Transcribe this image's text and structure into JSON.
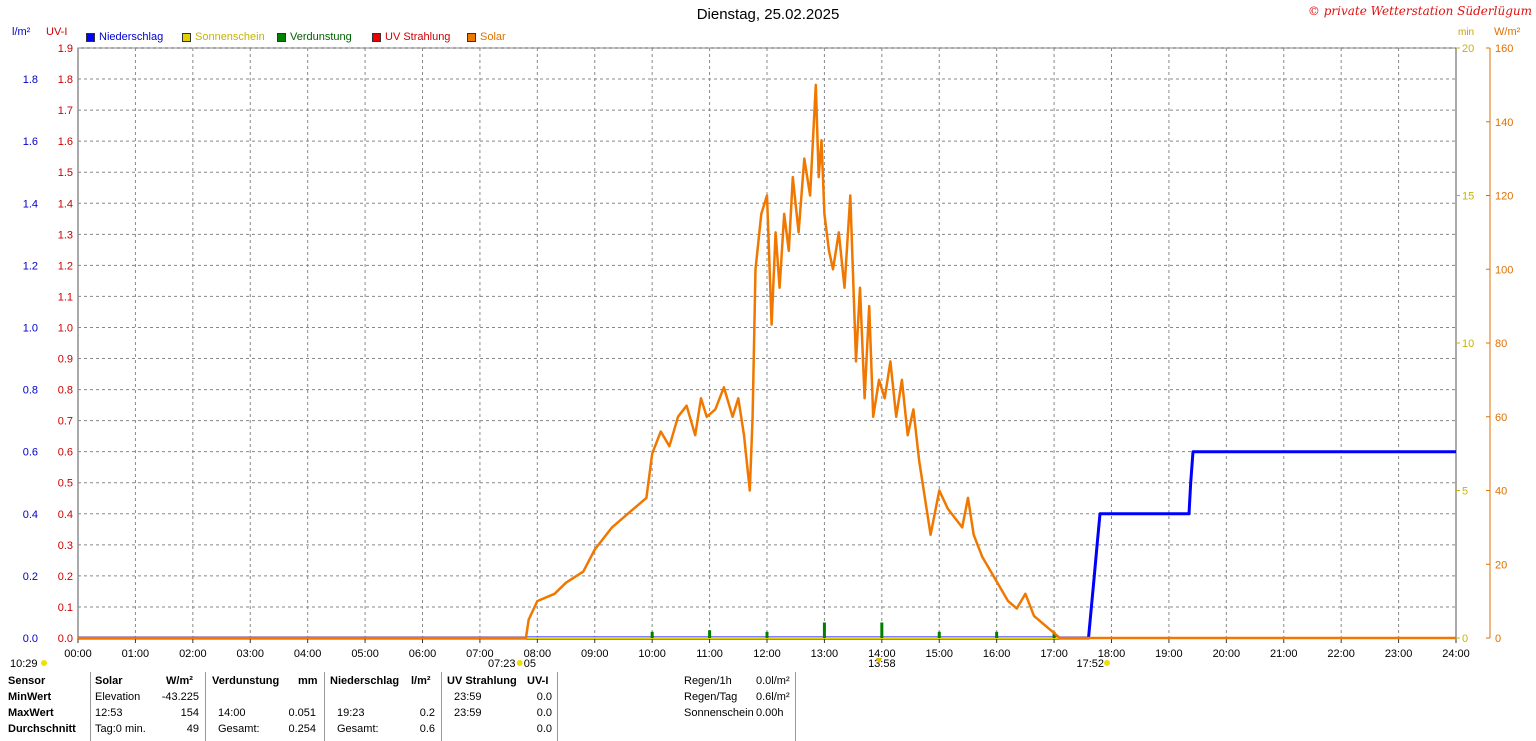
{
  "header": {
    "title": "Dienstag, 25.02.2025",
    "brand": "© private Wetterstation Süderlügum"
  },
  "axes": {
    "left_unit_1": "l/m²",
    "left_unit_2": "UV-I",
    "right_unit_1": "min",
    "right_unit_2": "W/m²"
  },
  "legend": [
    {
      "label": "Niederschlag",
      "color": "#0000ff"
    },
    {
      "label": "Sonnenschein",
      "color": "#e0d000"
    },
    {
      "label": "Verdunstung",
      "color": "#008000"
    },
    {
      "label": "UV Strahlung",
      "color": "#ee0000"
    },
    {
      "label": "Solar",
      "color": "#f07800"
    }
  ],
  "markers": {
    "left": "10:29",
    "sunrise": "07:23",
    "sunrise_tail": "05",
    "noon": "13:58",
    "sunset": "17:52"
  },
  "chart_data": {
    "type": "line",
    "x_unit": "hour",
    "x_ticks": [
      "00:00",
      "01:00",
      "02:00",
      "03:00",
      "04:00",
      "05:00",
      "06:00",
      "07:00",
      "08:00",
      "09:00",
      "10:00",
      "11:00",
      "12:00",
      "13:00",
      "14:00",
      "15:00",
      "16:00",
      "17:00",
      "18:00",
      "19:00",
      "20:00",
      "21:00",
      "22:00",
      "23:00",
      "24:00"
    ],
    "xlim": [
      0,
      24
    ],
    "y_axes": {
      "precip": {
        "ticks": [
          "0.0",
          "0.2",
          "0.4",
          "0.6",
          "0.8",
          "1.0",
          "1.2",
          "1.4",
          "1.6",
          "1.8"
        ],
        "ylim": [
          0,
          1.9
        ],
        "color": "#0000cc"
      },
      "uv": {
        "ticks": [
          "0.0",
          "0.1",
          "0.2",
          "0.3",
          "0.4",
          "0.5",
          "0.6",
          "0.7",
          "0.8",
          "0.9",
          "1.0",
          "1.1",
          "1.2",
          "1.3",
          "1.4",
          "1.5",
          "1.6",
          "1.7",
          "1.8",
          "1.9"
        ],
        "ylim": [
          0,
          1.9
        ],
        "color": "#cc0000"
      },
      "sun_min": {
        "ticks": [
          "0",
          "5",
          "10",
          "15",
          "20"
        ],
        "ylim": [
          0,
          20
        ],
        "color": "#c8b400"
      },
      "solar": {
        "ticks": [
          "0",
          "20",
          "40",
          "60",
          "80",
          "100",
          "120",
          "140",
          "160"
        ],
        "ylim": [
          0,
          160
        ],
        "color": "#e07000"
      }
    },
    "series": [
      {
        "name": "Niederschlag",
        "axis": "precip",
        "color": "#0000ff",
        "x": [
          0,
          17.6,
          17.65,
          17.7,
          17.75,
          17.8,
          19.35,
          19.38,
          19.42,
          24
        ],
        "y": [
          0,
          0,
          0.1,
          0.2,
          0.3,
          0.4,
          0.4,
          0.5,
          0.6,
          0.6
        ]
      },
      {
        "name": "Sonnenschein",
        "axis": "sun_min",
        "color": "#e0d000",
        "x": [
          3.95,
          24
        ],
        "y": [
          0,
          0
        ]
      },
      {
        "name": "Verdunstung",
        "axis": "precip",
        "color": "#008000",
        "x": [
          10,
          11,
          12,
          13,
          14,
          15,
          16,
          17
        ],
        "y": [
          0.02,
          0.025,
          0.02,
          0.05,
          0.05,
          0.02,
          0.02,
          0.02
        ]
      },
      {
        "name": "Solar",
        "axis": "solar",
        "color": "#f07800",
        "x": [
          0,
          7.8,
          7.85,
          8.0,
          8.3,
          8.5,
          8.8,
          9.0,
          9.3,
          9.6,
          9.9,
          10.0,
          10.15,
          10.3,
          10.45,
          10.6,
          10.75,
          10.85,
          10.95,
          11.1,
          11.25,
          11.4,
          11.5,
          11.6,
          11.7,
          11.75,
          11.8,
          11.9,
          12.0,
          12.08,
          12.15,
          12.22,
          12.3,
          12.38,
          12.45,
          12.55,
          12.65,
          12.75,
          12.85,
          12.9,
          12.95,
          13.0,
          13.08,
          13.15,
          13.25,
          13.35,
          13.45,
          13.55,
          13.62,
          13.7,
          13.78,
          13.85,
          13.95,
          14.05,
          14.15,
          14.25,
          14.35,
          14.45,
          14.55,
          14.65,
          14.75,
          14.85,
          15.0,
          15.15,
          15.3,
          15.4,
          15.5,
          15.6,
          15.75,
          15.9,
          16.05,
          16.2,
          16.35,
          16.5,
          16.65,
          16.8,
          16.95,
          17.1,
          17.2,
          17.3,
          17.4,
          17.5,
          17.55,
          24
        ],
        "y": [
          0,
          0,
          5,
          10,
          12,
          15,
          18,
          24,
          30,
          34,
          38,
          50,
          56,
          52,
          60,
          63,
          55,
          65,
          60,
          62,
          68,
          60,
          65,
          55,
          40,
          60,
          100,
          115,
          120,
          85,
          110,
          95,
          115,
          105,
          125,
          110,
          130,
          120,
          150,
          125,
          135,
          115,
          105,
          100,
          110,
          95,
          120,
          75,
          95,
          65,
          90,
          60,
          70,
          65,
          75,
          60,
          70,
          55,
          62,
          48,
          38,
          28,
          40,
          35,
          32,
          30,
          38,
          28,
          22,
          18,
          14,
          10,
          8,
          12,
          6,
          4,
          2,
          0,
          0,
          0,
          0,
          0,
          0,
          0
        ]
      }
    ]
  },
  "table": {
    "headers": {
      "sensor": "Sensor",
      "solar": "Solar",
      "solar_unit": "W/m²",
      "verd": "Verdunstung",
      "verd_unit": "mm",
      "nied": "Niederschlag",
      "nied_unit": "l/m²",
      "uv": "UV Strahlung",
      "uv_unit": "UV-I"
    },
    "rows": [
      {
        "label": "MinWert",
        "solar_t": "Elevation",
        "solar_v": "-43.225",
        "verd_t": "",
        "verd_v": "",
        "nied_t": "",
        "nied_v": "",
        "uv_t": "23:59",
        "uv_v": "0.0"
      },
      {
        "label": "MaxWert",
        "solar_t": "12:53",
        "solar_v": "154",
        "verd_t": "14:00",
        "verd_v": "0.051",
        "nied_t": "19:23",
        "nied_v": "0.2",
        "uv_t": "23:59",
        "uv_v": "0.0"
      },
      {
        "label": "Durchschnitt",
        "solar_t": "Tag:0 min.",
        "solar_v": "49",
        "verd_t": "Gesamt:",
        "verd_v": "0.254",
        "nied_t": "Gesamt:",
        "nied_v": "0.6",
        "uv_t": "",
        "uv_v": "0.0"
      }
    ],
    "summary": [
      {
        "label": "Regen/1h",
        "value": "0.0l/m²"
      },
      {
        "label": "Regen/Tag",
        "value": "0.6l/m²"
      },
      {
        "label": "Sonnenschein",
        "value": "0.00h"
      }
    ]
  }
}
